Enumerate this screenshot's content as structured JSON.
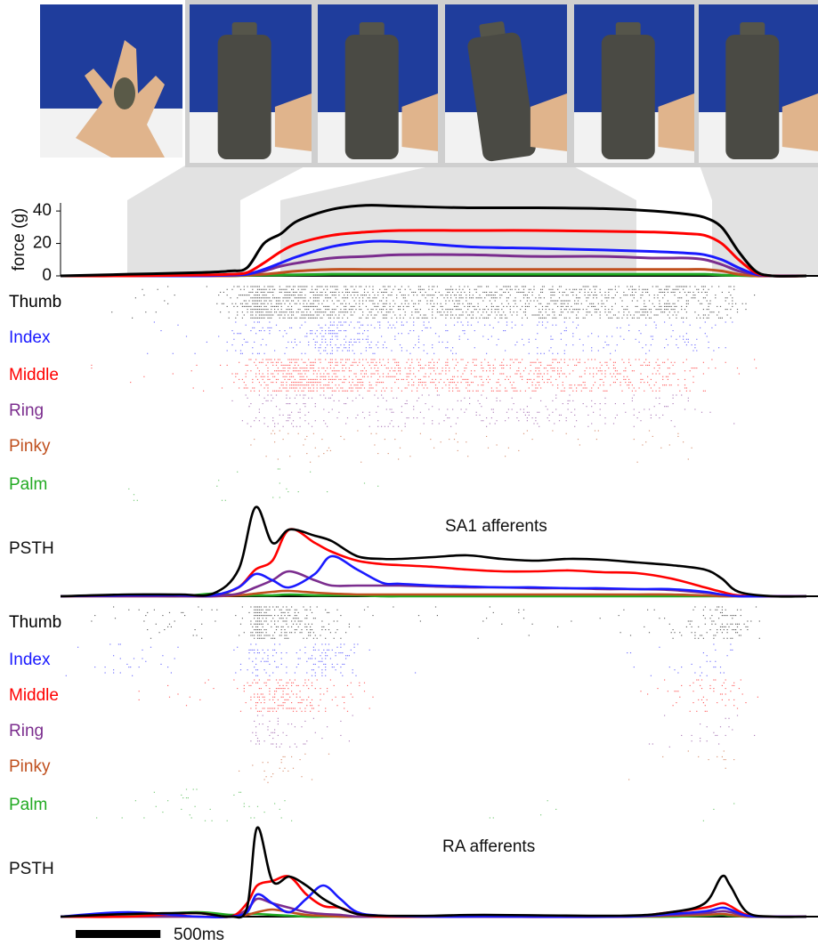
{
  "chart_data": [
    {
      "type": "line",
      "ylabel": "force (g)",
      "x": [
        0,
        400,
        800,
        1000,
        1100,
        1200,
        1300,
        1400,
        1600,
        1800,
        2000,
        2400,
        2800,
        3200,
        3500,
        3700,
        3800,
        3900,
        4000,
        4100,
        4200,
        4400
      ],
      "xlim": [
        0,
        4400
      ],
      "ylim": [
        0,
        45
      ],
      "yticks": [
        0,
        20,
        40
      ],
      "series": [
        {
          "color": "#000000",
          "values": [
            0,
            1,
            2,
            3,
            5,
            20,
            26,
            34,
            41,
            43.5,
            43,
            42,
            42,
            41.5,
            40,
            38,
            36,
            30,
            15,
            3,
            0,
            0
          ]
        },
        {
          "color": "#ff0000",
          "values": [
            0,
            0,
            0.5,
            1,
            2,
            8,
            15,
            20,
            25,
            27,
            28,
            28,
            28,
            27.5,
            27,
            26,
            25,
            20,
            10,
            2,
            0,
            0
          ]
        },
        {
          "color": "#1a1aff",
          "values": [
            0,
            0,
            0,
            0.5,
            1,
            4,
            8,
            12,
            18,
            21,
            21,
            18,
            17,
            16,
            15,
            14,
            13,
            10,
            5,
            1,
            0,
            0
          ]
        },
        {
          "color": "#7b2d8e",
          "values": [
            0,
            0,
            0,
            0.5,
            1,
            3,
            6,
            8,
            11,
            12,
            13,
            13,
            12,
            12,
            11,
            11,
            10,
            7,
            3,
            1,
            0,
            0
          ]
        },
        {
          "color": "#c0501e",
          "values": [
            0,
            0,
            0,
            0,
            0.5,
            1,
            2,
            3,
            4,
            4,
            4,
            4,
            4,
            4,
            4,
            4,
            4,
            3,
            1,
            0,
            0,
            0
          ]
        },
        {
          "color": "#22aa22",
          "values": [
            0,
            0,
            0,
            0,
            0.3,
            0.5,
            0.5,
            0.7,
            1,
            1,
            1,
            1,
            1,
            1,
            1,
            1,
            1,
            0.5,
            0.3,
            0,
            0,
            0
          ]
        }
      ]
    },
    {
      "type": "line",
      "title": "SA1 afferents",
      "ylabel": "PSTH",
      "x": [
        0,
        400,
        700,
        900,
        1050,
        1150,
        1250,
        1350,
        1500,
        1600,
        1750,
        1900,
        2000,
        2200,
        2400,
        2600,
        2800,
        3000,
        3200,
        3400,
        3600,
        3800,
        3900,
        4000,
        4200,
        4400
      ],
      "xlim": [
        0,
        4400
      ],
      "ylim": [
        0,
        100
      ],
      "series": [
        {
          "name": "Thumb",
          "color": "#000000",
          "values": [
            0,
            2,
            2,
            3,
            30,
            100,
            60,
            75,
            68,
            62,
            45,
            42,
            42,
            44,
            46,
            42,
            40,
            42,
            41,
            38,
            35,
            30,
            20,
            5,
            0,
            0
          ]
        },
        {
          "name": "Index",
          "color": "#1a1aff",
          "values": [
            0,
            1,
            1,
            1,
            10,
            25,
            18,
            10,
            25,
            45,
            30,
            15,
            14,
            12,
            11,
            10,
            10,
            9,
            9,
            8,
            8,
            5,
            2,
            0,
            0,
            0
          ]
        },
        {
          "name": "Middle",
          "color": "#ff0000",
          "values": [
            0,
            1,
            1,
            1,
            10,
            30,
            40,
            75,
            60,
            50,
            40,
            36,
            35,
            33,
            30,
            28,
            28,
            29,
            27,
            26,
            20,
            10,
            5,
            1,
            0,
            0
          ]
        },
        {
          "name": "Ring",
          "color": "#7b2d8e",
          "values": [
            0,
            0,
            0,
            0,
            3,
            10,
            18,
            28,
            18,
            12,
            12,
            12,
            12,
            11,
            10,
            10,
            9,
            9,
            8,
            8,
            7,
            4,
            2,
            0,
            0,
            0
          ]
        },
        {
          "name": "Pinky",
          "color": "#c0501e",
          "values": [
            0,
            0,
            0,
            0,
            1,
            3,
            5,
            6,
            4,
            3,
            2,
            2,
            2,
            2,
            2,
            2,
            2,
            2,
            2,
            2,
            2,
            1,
            0,
            0,
            0,
            0
          ]
        },
        {
          "name": "Palm",
          "color": "#22aa22",
          "values": [
            0,
            1,
            0,
            3,
            1,
            1,
            1,
            2,
            1,
            1,
            1,
            0,
            0,
            0,
            0,
            0,
            0,
            0,
            0,
            0,
            0,
            0,
            0,
            0,
            0,
            0
          ]
        }
      ]
    },
    {
      "type": "line",
      "title": "RA afferents",
      "ylabel": "PSTH",
      "x": [
        0,
        400,
        800,
        1000,
        1100,
        1160,
        1250,
        1350,
        1450,
        1550,
        1650,
        1750,
        1900,
        2200,
        2500,
        3300,
        3600,
        3800,
        3900,
        3950,
        4050,
        4200,
        4400
      ],
      "xlim": [
        0,
        4400
      ],
      "ylim": [
        0,
        100
      ],
      "series": [
        {
          "name": "Thumb",
          "color": "#000000",
          "values": [
            0,
            3,
            4,
            0,
            10,
            100,
            40,
            45,
            35,
            20,
            10,
            3,
            1,
            1,
            2,
            1,
            5,
            15,
            45,
            35,
            5,
            0,
            0
          ]
        },
        {
          "name": "Index",
          "color": "#1a1aff",
          "values": [
            0,
            5,
            0,
            0,
            5,
            25,
            15,
            5,
            20,
            35,
            20,
            5,
            1,
            0,
            0,
            0,
            3,
            6,
            10,
            8,
            1,
            0,
            0
          ]
        },
        {
          "name": "Middle",
          "color": "#ff0000",
          "values": [
            0,
            0,
            4,
            0,
            15,
            35,
            40,
            45,
            25,
            12,
            10,
            3,
            0,
            0,
            0,
            0,
            5,
            10,
            15,
            12,
            2,
            0,
            0
          ]
        },
        {
          "name": "Ring",
          "color": "#7b2d8e",
          "values": [
            0,
            0,
            0,
            0,
            8,
            20,
            15,
            10,
            5,
            3,
            2,
            0,
            0,
            0,
            0,
            0,
            2,
            4,
            6,
            5,
            1,
            0,
            0
          ]
        },
        {
          "name": "Pinky",
          "color": "#c0501e",
          "values": [
            0,
            0,
            0,
            0,
            2,
            5,
            8,
            5,
            2,
            1,
            0,
            0,
            0,
            0,
            0,
            0,
            1,
            2,
            3,
            2,
            0,
            0,
            0
          ]
        },
        {
          "name": "Palm",
          "color": "#22aa22",
          "values": [
            0,
            1,
            5,
            2,
            3,
            3,
            2,
            1,
            0,
            0,
            0,
            0,
            0,
            0,
            1,
            0,
            0,
            1,
            2,
            1,
            0,
            0,
            0
          ]
        }
      ]
    }
  ],
  "scale_bar": {
    "value": 500,
    "label": "500ms"
  }
}
